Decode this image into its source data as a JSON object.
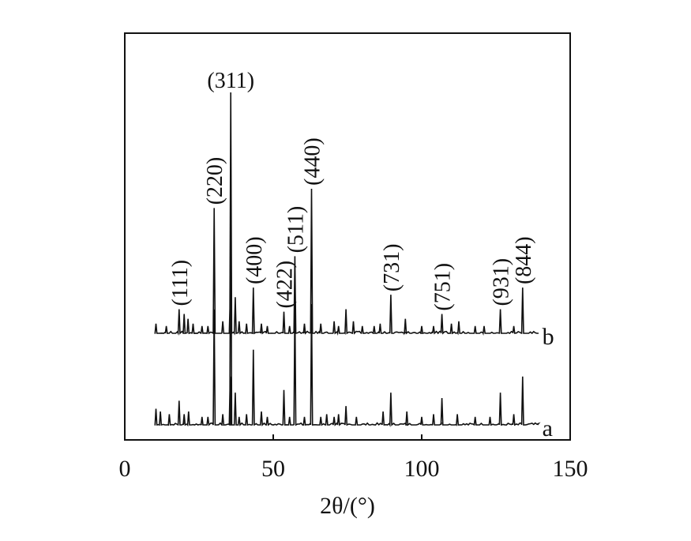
{
  "chart_data": {
    "type": "line",
    "xlabel": "2θ/(°)",
    "ylabel": "",
    "xlim": [
      0,
      150
    ],
    "xticks": [
      0,
      50,
      100,
      150
    ],
    "grid": false,
    "series": [
      {
        "name": "a",
        "peaks": [
          {
            "x": 10.5,
            "h": 6
          },
          {
            "x": 12,
            "h": 5
          },
          {
            "x": 15,
            "h": 4
          },
          {
            "x": 18.3,
            "h": 9
          },
          {
            "x": 20,
            "h": 4
          },
          {
            "x": 21.5,
            "h": 5
          },
          {
            "x": 26,
            "h": 3
          },
          {
            "x": 28,
            "h": 3
          },
          {
            "x": 30.1,
            "h": 43
          },
          {
            "x": 33,
            "h": 4
          },
          {
            "x": 35.5,
            "h": 18
          },
          {
            "x": 35.7,
            "h": 100
          },
          {
            "x": 37.2,
            "h": 12
          },
          {
            "x": 38.5,
            "h": 3
          },
          {
            "x": 41,
            "h": 4
          },
          {
            "x": 43.3,
            "h": 28
          },
          {
            "x": 46,
            "h": 5
          },
          {
            "x": 48,
            "h": 3
          },
          {
            "x": 53.6,
            "h": 13
          },
          {
            "x": 55.5,
            "h": 3
          },
          {
            "x": 57.3,
            "h": 46
          },
          {
            "x": 60.5,
            "h": 3
          },
          {
            "x": 62.9,
            "h": 45
          },
          {
            "x": 66,
            "h": 3
          },
          {
            "x": 68,
            "h": 4
          },
          {
            "x": 70.5,
            "h": 3
          },
          {
            "x": 72,
            "h": 4
          },
          {
            "x": 74.5,
            "h": 7
          },
          {
            "x": 78,
            "h": 3
          },
          {
            "x": 87,
            "h": 5
          },
          {
            "x": 89.6,
            "h": 12
          },
          {
            "x": 95,
            "h": 5
          },
          {
            "x": 100,
            "h": 3
          },
          {
            "x": 104,
            "h": 4
          },
          {
            "x": 106.8,
            "h": 10
          },
          {
            "x": 112,
            "h": 4
          },
          {
            "x": 118,
            "h": 3
          },
          {
            "x": 123,
            "h": 3
          },
          {
            "x": 126.5,
            "h": 12
          },
          {
            "x": 131,
            "h": 4
          },
          {
            "x": 134,
            "h": 18
          }
        ]
      },
      {
        "name": "b",
        "peaks": [
          {
            "x": 10.5,
            "h": 4
          },
          {
            "x": 14,
            "h": 3
          },
          {
            "x": 18.3,
            "h": 10
          },
          {
            "x": 20,
            "h": 8
          },
          {
            "x": 21.3,
            "h": 6
          },
          {
            "x": 23,
            "h": 4
          },
          {
            "x": 26,
            "h": 3
          },
          {
            "x": 28,
            "h": 3
          },
          {
            "x": 30.1,
            "h": 52
          },
          {
            "x": 33,
            "h": 5
          },
          {
            "x": 35.5,
            "h": 15
          },
          {
            "x": 35.7,
            "h": 100
          },
          {
            "x": 37.2,
            "h": 15
          },
          {
            "x": 38.5,
            "h": 5
          },
          {
            "x": 41,
            "h": 4
          },
          {
            "x": 43.3,
            "h": 19
          },
          {
            "x": 46,
            "h": 4
          },
          {
            "x": 48,
            "h": 3
          },
          {
            "x": 53.6,
            "h": 9
          },
          {
            "x": 55.5,
            "h": 3
          },
          {
            "x": 57.3,
            "h": 32
          },
          {
            "x": 60.5,
            "h": 4
          },
          {
            "x": 62.9,
            "h": 60
          },
          {
            "x": 66,
            "h": 4
          },
          {
            "x": 70.5,
            "h": 5
          },
          {
            "x": 72,
            "h": 3
          },
          {
            "x": 74.5,
            "h": 10
          },
          {
            "x": 77,
            "h": 5
          },
          {
            "x": 80,
            "h": 3
          },
          {
            "x": 84,
            "h": 3
          },
          {
            "x": 86,
            "h": 4
          },
          {
            "x": 89.6,
            "h": 16
          },
          {
            "x": 94.5,
            "h": 6
          },
          {
            "x": 100,
            "h": 3
          },
          {
            "x": 104,
            "h": 3
          },
          {
            "x": 106.8,
            "h": 8
          },
          {
            "x": 110,
            "h": 4
          },
          {
            "x": 112.5,
            "h": 5
          },
          {
            "x": 118,
            "h": 3
          },
          {
            "x": 121,
            "h": 3
          },
          {
            "x": 126.5,
            "h": 10
          },
          {
            "x": 131,
            "h": 3
          },
          {
            "x": 134,
            "h": 19
          }
        ]
      }
    ],
    "annotations": [
      {
        "text": "(311)",
        "x": 35.7,
        "orientation": "horizontal"
      },
      {
        "text": "(111)",
        "x": 18.3,
        "orientation": "vertical"
      },
      {
        "text": "(220)",
        "x": 30.1,
        "orientation": "vertical"
      },
      {
        "text": "(400)",
        "x": 43.3,
        "orientation": "vertical"
      },
      {
        "text": "(422)",
        "x": 53.6,
        "orientation": "vertical"
      },
      {
        "text": "(511)",
        "x": 57.3,
        "orientation": "vertical"
      },
      {
        "text": "(440)",
        "x": 62.9,
        "orientation": "vertical"
      },
      {
        "text": "(731)",
        "x": 89.6,
        "orientation": "vertical"
      },
      {
        "text": "(751)",
        "x": 106.8,
        "orientation": "vertical"
      },
      {
        "text": "(931)",
        "x": 126.5,
        "orientation": "vertical"
      },
      {
        "text": "(844)",
        "x": 134,
        "orientation": "vertical"
      }
    ]
  }
}
